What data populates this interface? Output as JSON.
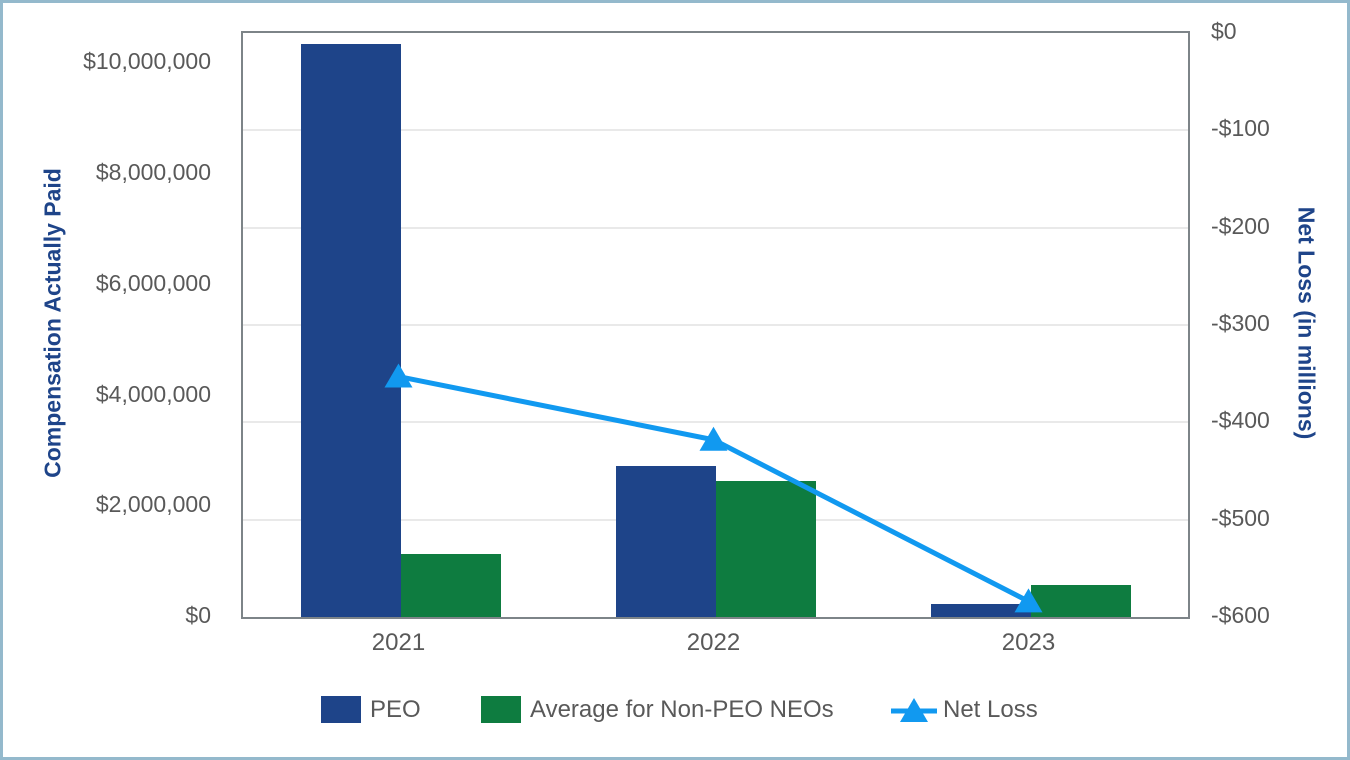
{
  "frame": {
    "border_color": "#94b9cc",
    "background_color": "#ffffff",
    "plot_border_color": "#7d8488",
    "gridline_color": "#e9e9e9"
  },
  "chart_data": {
    "type": "bar",
    "subtype": "bar-line-combo",
    "grid": true,
    "legend_position": "bottom",
    "categories": [
      "2021",
      "2022",
      "2023"
    ],
    "series": [
      {
        "name": "PEO",
        "render": "bar",
        "axis": "left",
        "color": "#1e4489",
        "values": [
          10350000,
          2720000,
          230000
        ]
      },
      {
        "name": "Average for Non-PEO NEOs",
        "render": "bar",
        "axis": "left",
        "color": "#0e7c40",
        "values": [
          1130000,
          2460000,
          580000
        ]
      },
      {
        "name": "Net Loss",
        "render": "line",
        "axis": "right",
        "color": "#1199f0",
        "marker": "triangle-up",
        "values": [
          -355,
          -420,
          -586
        ]
      }
    ],
    "left_axis": {
      "title": "Compensation Actually Paid",
      "title_color": "#1e4489",
      "min": 0,
      "max": 10550000,
      "ticks": [
        {
          "label": "$10,000,000",
          "value": 10000000
        },
        {
          "label": "$8,000,000",
          "value": 8000000
        },
        {
          "label": "$6,000,000",
          "value": 6000000
        },
        {
          "label": "$4,000,000",
          "value": 4000000
        },
        {
          "label": "$2,000,000",
          "value": 2000000
        },
        {
          "label": "$0",
          "value": 0
        }
      ]
    },
    "right_axis": {
      "title": "Net Loss (in millions)",
      "title_color": "#1e4489",
      "min": -600,
      "max": 0,
      "ticks": [
        {
          "label": "$0",
          "value": 0
        },
        {
          "label": "-$100",
          "value": -100
        },
        {
          "label": "-$200",
          "value": -200
        },
        {
          "label": "-$300",
          "value": -300
        },
        {
          "label": "-$400",
          "value": -400
        },
        {
          "label": "-$500",
          "value": -500
        },
        {
          "label": "-$600",
          "value": -600
        }
      ]
    }
  },
  "legend": {
    "items": [
      {
        "label": "PEO"
      },
      {
        "label": "Average for Non-PEO NEOs"
      },
      {
        "label": "Net Loss"
      }
    ]
  }
}
